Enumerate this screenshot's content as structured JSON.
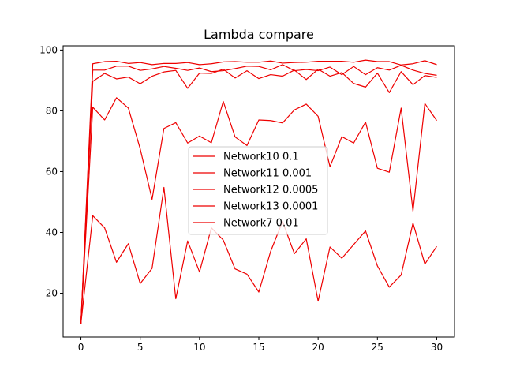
{
  "chart_data": {
    "type": "line",
    "title": "Lambda compare",
    "xlabel": "",
    "ylabel": "",
    "xlim": [
      0,
      30
    ],
    "ylim": [
      10,
      100
    ],
    "xticks": [
      0,
      5,
      10,
      15,
      20,
      25,
      30
    ],
    "yticks": [
      20,
      40,
      60,
      80,
      100
    ],
    "grid": false,
    "legend_position": "center",
    "line_color": "#ee0000",
    "x": [
      0,
      1,
      2,
      3,
      4,
      5,
      6,
      7,
      8,
      9,
      10,
      11,
      12,
      13,
      14,
      15,
      16,
      17,
      18,
      19,
      20,
      21,
      22,
      23,
      24,
      25,
      26,
      27,
      28,
      29,
      30
    ],
    "series": [
      {
        "name": "Network10 0.1",
        "values": [
          10,
          45.5,
          41.5,
          30.2,
          36.3,
          23.2,
          28.2,
          54.8,
          18.2,
          37.2,
          27,
          41.5,
          37.5,
          28,
          26.3,
          20.4,
          33.8,
          43.6,
          33,
          37.9,
          17.4,
          35.2,
          31.5,
          36,
          40.5,
          29,
          22,
          26,
          43.1,
          29.6,
          35.4
        ]
      },
      {
        "name": "Network11 0.001",
        "values": [
          10,
          81.2,
          77,
          84.3,
          80.9,
          67.5,
          50.9,
          74.2,
          76.1,
          69.4,
          71.7,
          69.5,
          83.1,
          71.4,
          68.6,
          77,
          76.8,
          76,
          80.3,
          82.2,
          78.2,
          61.6,
          71.5,
          69.4,
          76.3,
          61.1,
          59.8,
          80.9,
          47,
          82.4,
          76.8
        ]
      },
      {
        "name": "Network12 0.0005",
        "values": [
          10,
          89.7,
          92.3,
          90.5,
          91.1,
          88.9,
          91.4,
          92.8,
          93.3,
          87.4,
          92.4,
          92.3,
          93.7,
          90.8,
          93.2,
          90.6,
          91.9,
          91.4,
          93.4,
          90.3,
          93.7,
          91.4,
          92.6,
          89,
          87.8,
          92.4,
          86,
          92.9,
          88.6,
          91.6,
          91
        ]
      },
      {
        "name": "Network13 0.0001",
        "values": [
          10,
          93.4,
          93.4,
          94.7,
          94.7,
          93.3,
          93.8,
          94.6,
          94,
          93.3,
          94.1,
          92.9,
          93.2,
          93.9,
          94.7,
          94.6,
          93.5,
          95.2,
          93.2,
          93.6,
          93.2,
          94.4,
          91.9,
          94.6,
          91.9,
          94.2,
          93.4,
          95,
          93.4,
          92.3,
          91.7
        ]
      },
      {
        "name": "Network7 0.01",
        "values": [
          10,
          95.5,
          96.2,
          96.3,
          95.6,
          95.9,
          95.2,
          95.6,
          95.6,
          95.9,
          95.2,
          95.5,
          96.1,
          96.2,
          96,
          96,
          96.4,
          95.7,
          95.9,
          96,
          96.3,
          96.3,
          96.3,
          96,
          96.7,
          96.2,
          96.2,
          95.1,
          95.5,
          96.5,
          95.2
        ]
      }
    ]
  }
}
